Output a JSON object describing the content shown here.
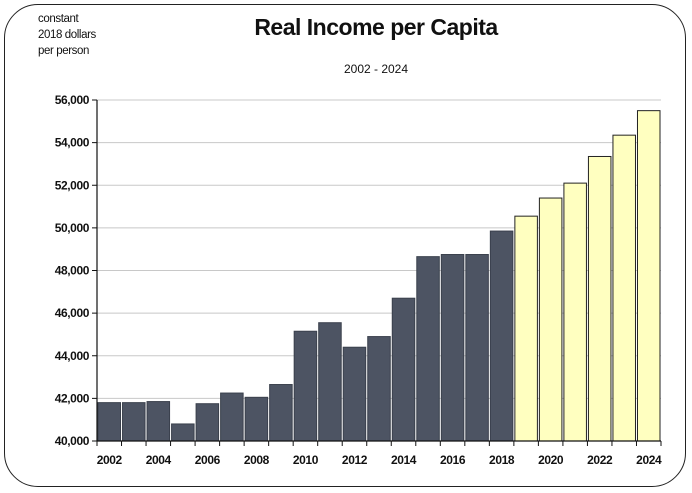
{
  "chart_data": {
    "type": "bar",
    "title": "Real Income per Capita",
    "subtitle": "2002 - 2024",
    "unit_label": [
      "constant",
      "2018 dollars",
      "per person"
    ],
    "categories": [
      2002,
      2003,
      2004,
      2005,
      2006,
      2007,
      2008,
      2009,
      2010,
      2011,
      2012,
      2013,
      2014,
      2015,
      2016,
      2017,
      2018,
      2019,
      2020,
      2021,
      2022,
      2023,
      2024
    ],
    "values": [
      41800,
      41800,
      41850,
      40800,
      41750,
      42250,
      42050,
      42650,
      45150,
      45550,
      44400,
      44900,
      46700,
      48650,
      48750,
      48750,
      49850,
      50550,
      51400,
      52100,
      53350,
      54350,
      55500
    ],
    "actual_color": "#4d5463",
    "forecast_color": "#ffffc0",
    "forecast_start": 2019,
    "ylim": [
      40000,
      56000
    ],
    "yticks": [
      "40,000",
      "42,000",
      "44,000",
      "46,000",
      "48,000",
      "50,000",
      "52,000",
      "54,000",
      "56,000"
    ],
    "yticks_values": [
      40000,
      42000,
      44000,
      46000,
      48000,
      50000,
      52000,
      54000,
      56000
    ],
    "xtick_labels": [
      "2002",
      "2004",
      "2006",
      "2008",
      "2010",
      "2012",
      "2014",
      "2016",
      "2018",
      "2020",
      "2022",
      "2024"
    ],
    "grid": true
  }
}
